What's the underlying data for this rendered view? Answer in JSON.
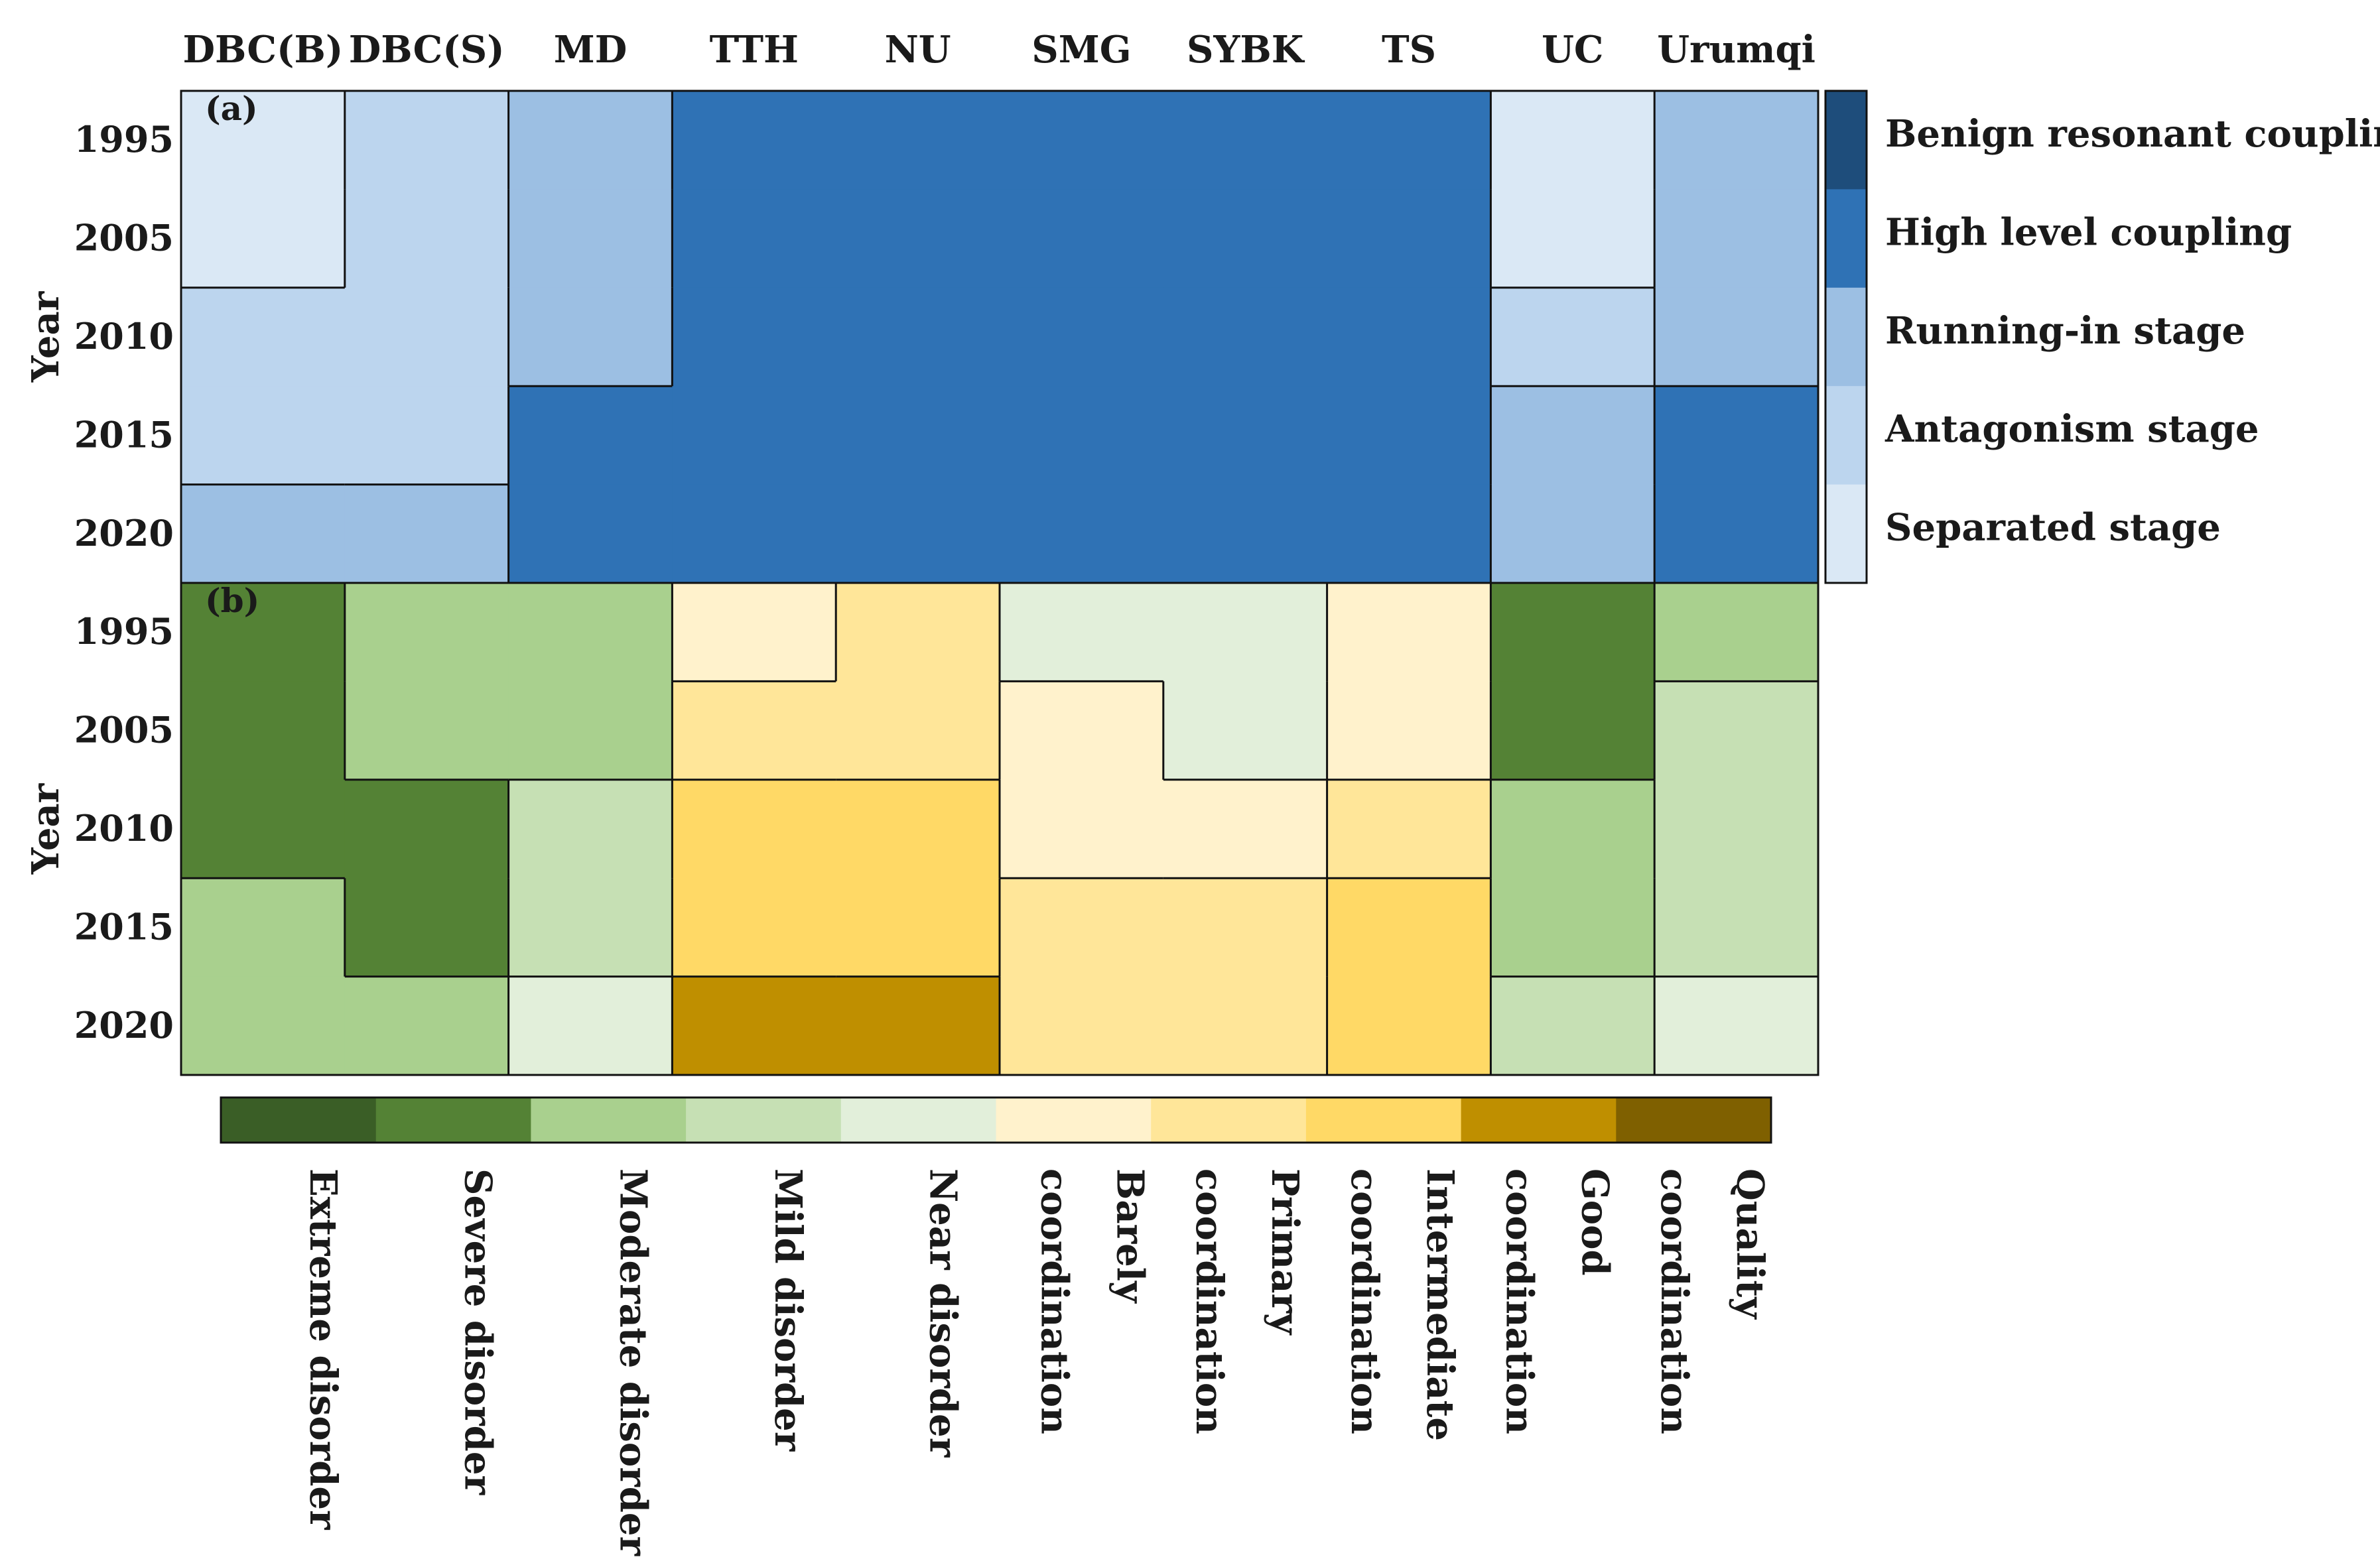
{
  "chart_data": [
    {
      "type": "heatmap",
      "panel_label": "(a)",
      "ylabel": "Year",
      "columns": [
        "DBC(B)",
        "DBC(S)",
        "MD",
        "TTH",
        "NU",
        "SMG",
        "SYBK",
        "TS",
        "UC",
        "Urumqi"
      ],
      "rows": [
        "1995",
        "2005",
        "2010",
        "2015",
        "2020"
      ],
      "legend_title": "",
      "legend": [
        {
          "label": "Benign resonant coupling",
          "color": "#1e4d7b"
        },
        {
          "label": "High level coupling",
          "color": "#2f72b5"
        },
        {
          "label": "Running-in stage",
          "color": "#9cbfe3"
        },
        {
          "label": "Antagonism stage",
          "color": "#bcd5ee"
        },
        {
          "label": "Separated stage",
          "color": "#dae8f5"
        }
      ],
      "values": [
        [
          "Separated stage",
          "Antagonism stage",
          "Running-in stage",
          "High level coupling",
          "High level coupling",
          "High level coupling",
          "High level coupling",
          "High level coupling",
          "Separated stage",
          "Running-in stage"
        ],
        [
          "Separated stage",
          "Antagonism stage",
          "Running-in stage",
          "High level coupling",
          "High level coupling",
          "High level coupling",
          "High level coupling",
          "High level coupling",
          "Separated stage",
          "Running-in stage"
        ],
        [
          "Antagonism stage",
          "Antagonism stage",
          "Running-in stage",
          "High level coupling",
          "High level coupling",
          "High level coupling",
          "High level coupling",
          "High level coupling",
          "Antagonism stage",
          "Running-in stage"
        ],
        [
          "Antagonism stage",
          "Antagonism stage",
          "High level coupling",
          "High level coupling",
          "High level coupling",
          "High level coupling",
          "High level coupling",
          "High level coupling",
          "Running-in stage",
          "High level coupling"
        ],
        [
          "Running-in stage",
          "Running-in stage",
          "High level coupling",
          "High level coupling",
          "High level coupling",
          "High level coupling",
          "High level coupling",
          "High level coupling",
          "Running-in stage",
          "High level coupling"
        ]
      ]
    },
    {
      "type": "heatmap",
      "panel_label": "(b)",
      "ylabel": "Year",
      "columns": [
        "DBC(B)",
        "DBC(S)",
        "MD",
        "TTH",
        "NU",
        "SMG",
        "SYBK",
        "TS",
        "UC",
        "Urumqi"
      ],
      "rows": [
        "1995",
        "2005",
        "2010",
        "2015",
        "2020"
      ],
      "legend": [
        {
          "label": "Extreme disorder",
          "color": "#3a5e26"
        },
        {
          "label": "Severe disorder",
          "color": "#548235"
        },
        {
          "label": "Moderate disorder",
          "color": "#a9d08e"
        },
        {
          "label": "Mild disorder",
          "color": "#c6e0b4"
        },
        {
          "label": "Near disorder",
          "color": "#e2efda"
        },
        {
          "label": "Barely coordination",
          "color": "#fff2cc"
        },
        {
          "label": "Primary coordination",
          "color": "#ffe699"
        },
        {
          "label": "Intermediate coordination",
          "color": "#ffd966"
        },
        {
          "label": "Good coordination",
          "color": "#bf8f00"
        },
        {
          "label": "Quality coordination",
          "color": "#7f6000"
        }
      ],
      "values": [
        [
          "Severe disorder",
          "Moderate disorder",
          "Moderate disorder",
          "Barely coordination",
          "Primary coordination",
          "Near disorder",
          "Near disorder",
          "Barely coordination",
          "Severe disorder",
          "Moderate disorder"
        ],
        [
          "Severe disorder",
          "Moderate disorder",
          "Moderate disorder",
          "Primary coordination",
          "Primary coordination",
          "Barely coordination",
          "Near disorder",
          "Barely coordination",
          "Severe disorder",
          "Mild disorder"
        ],
        [
          "Severe disorder",
          "Severe disorder",
          "Mild disorder",
          "Intermediate coordination",
          "Intermediate coordination",
          "Barely coordination",
          "Barely coordination",
          "Primary coordination",
          "Moderate disorder",
          "Mild disorder"
        ],
        [
          "Moderate disorder",
          "Severe disorder",
          "Mild disorder",
          "Intermediate coordination",
          "Intermediate coordination",
          "Primary coordination",
          "Primary coordination",
          "Intermediate coordination",
          "Moderate disorder",
          "Mild disorder"
        ],
        [
          "Moderate disorder",
          "Moderate disorder",
          "Near disorder",
          "Good coordination",
          "Good coordination",
          "Primary coordination",
          "Primary coordination",
          "Intermediate coordination",
          "Mild disorder",
          "Near disorder"
        ]
      ]
    }
  ],
  "colorbar_b_labels": [
    [
      "Extreme disorder"
    ],
    [
      "Severe disorder"
    ],
    [
      "Moderate disorder"
    ],
    [
      "Mild disorder"
    ],
    [
      "Near disorder"
    ],
    [
      "Barely",
      "coordination"
    ],
    [
      "Primary",
      "coordination"
    ],
    [
      "Intermediate",
      "coordination"
    ],
    [
      "Good",
      "coordination"
    ],
    [
      "Quality",
      "coordination"
    ]
  ]
}
